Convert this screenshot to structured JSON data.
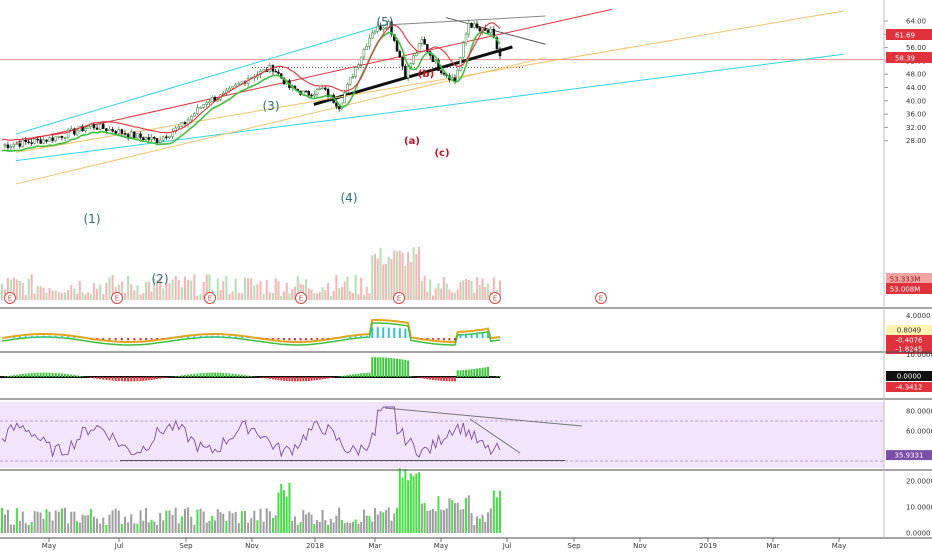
{
  "chart_data": {
    "type": "candlestick",
    "price_panel": {
      "y_ticks": [
        "64.00",
        "60.00",
        "56.00",
        "52.00",
        "48.00",
        "44.00",
        "40.00",
        "36.00",
        "32.00",
        "28.00"
      ],
      "price_tags": [
        {
          "value": "61.69",
          "color": "#e0323c"
        },
        {
          "value": "58.39",
          "color": "#e0323c"
        },
        {
          "value": "53.333M",
          "color": "#f2a3a3",
          "text_color": "#8a1a1a"
        },
        {
          "value": "53.008M",
          "color": "#e0323c"
        }
      ],
      "wave_labels": [
        {
          "text": "(1)",
          "style": "impulse"
        },
        {
          "text": "(2)",
          "style": "impulse"
        },
        {
          "text": "(3)",
          "style": "impulse"
        },
        {
          "text": "(4)",
          "style": "impulse"
        },
        {
          "text": "(5)",
          "style": "impulse"
        },
        {
          "text": "(a)",
          "style": "corrective"
        },
        {
          "text": "(b)",
          "style": "corrective"
        },
        {
          "text": "(c)",
          "style": "corrective"
        }
      ],
      "earnings_marker": "E",
      "earnings_marker_count": 7,
      "horizontal_level": 52.4,
      "dotted_level": 50.0,
      "trendlines": [
        {
          "name": "black-support",
          "color": "#111111",
          "from": [
            "Jan 2018",
            38.9
          ],
          "to": [
            "Jul 2018",
            56.2
          ]
        },
        {
          "name": "cyan-upper",
          "color": "#2ed3e6",
          "from": [
            "Apr 2017",
            30.0
          ],
          "to": [
            "Mar 2018",
            62.5
          ]
        },
        {
          "name": "cyan-lower",
          "color": "#2ed3e6",
          "from": [
            "Apr 2017",
            22.0
          ],
          "to": [
            "May 2019",
            54.0
          ]
        },
        {
          "name": "red-channel",
          "color": "#e0323c",
          "from": [
            "Apr 2017",
            27.5
          ],
          "to": [
            "Oct 2018",
            67.5
          ]
        },
        {
          "name": "orange-upper",
          "color": "#f5c26b",
          "from": [
            "Apr 2017",
            24.5
          ],
          "to": [
            "May 2019",
            67.0
          ]
        },
        {
          "name": "orange-lower",
          "color": "#f5c26b",
          "from": [
            "Apr 2017",
            15.0
          ],
          "to": [
            "Aug 2018",
            53.0
          ]
        },
        {
          "name": "grey-top",
          "color": "#888888",
          "from": [
            "Mar 2018",
            62.7
          ],
          "to": [
            "Aug 2018",
            65.5
          ]
        },
        {
          "name": "grey-down",
          "color": "#555555",
          "from": [
            "May 2018",
            65.0
          ],
          "to": [
            "Aug 2018",
            57.0
          ]
        }
      ],
      "price_series": [
        [
          "Apr 2017",
          26.5
        ],
        [
          "May 2017",
          28.5
        ],
        [
          "Jun 2017",
          30.8
        ],
        [
          "Jun 2017",
          32.5
        ],
        [
          "Jul 2017",
          31.0
        ],
        [
          "Aug 2017",
          29.0
        ],
        [
          "Aug 2017",
          28.2
        ],
        [
          "Sep 2017",
          32.5
        ],
        [
          "Oct 2017",
          40.0
        ],
        [
          "Oct 2017",
          41.5
        ],
        [
          "Nov 2017",
          47.0
        ],
        [
          "Dec 2017",
          50.0
        ],
        [
          "Dec 2017",
          44.0
        ],
        [
          "Jan 2018",
          42.0
        ],
        [
          "Jan 2018",
          43.5
        ],
        [
          "Feb 2018",
          38.5
        ],
        [
          "Feb 2018",
          50.0
        ],
        [
          "Mar 2018",
          61.0
        ],
        [
          "Mar 2018",
          63.5
        ],
        [
          "Apr 2018",
          48.0
        ],
        [
          "Apr 2018",
          58.0
        ],
        [
          "May 2018",
          50.0
        ],
        [
          "May 2018",
          46.0
        ],
        [
          "Jun 2018",
          63.5
        ],
        [
          "Jun 2018",
          61.0
        ],
        [
          "Jun 2018",
          60.5
        ],
        [
          "Jul 2018",
          53.5
        ]
      ]
    },
    "indicator_1": {
      "y_ticks": [
        "4.0000"
      ],
      "tags": [
        {
          "value": "0.8049",
          "color": "#fff3b0",
          "text_color": "#333333"
        },
        {
          "value": "-0.4076",
          "color": "#e0323c"
        },
        {
          "value": "-1.8245",
          "color": "#e0323c"
        }
      ]
    },
    "indicator_2": {
      "y_ticks": [
        "10.0000"
      ],
      "tags": [
        {
          "value": "0.0000",
          "color": "#111111"
        },
        {
          "value": "-4.3412",
          "color": "#e0323c"
        }
      ]
    },
    "rsi": {
      "y_ticks": [
        "80.0000",
        "60.0000"
      ],
      "tags": [
        {
          "value": "35.9331",
          "color": "#7b4fa8"
        }
      ],
      "band": [
        30,
        70
      ],
      "range": [
        25,
        85
      ]
    },
    "volume": {
      "y_ticks": [
        "20.0000",
        "10.0000",
        "0.0000"
      ]
    },
    "x_ticks": [
      "May",
      "Jul",
      "Sep",
      "Nov",
      "2018",
      "Mar",
      "May",
      "Jul",
      "Sep",
      "Nov",
      "2019",
      "Mar",
      "May"
    ]
  }
}
